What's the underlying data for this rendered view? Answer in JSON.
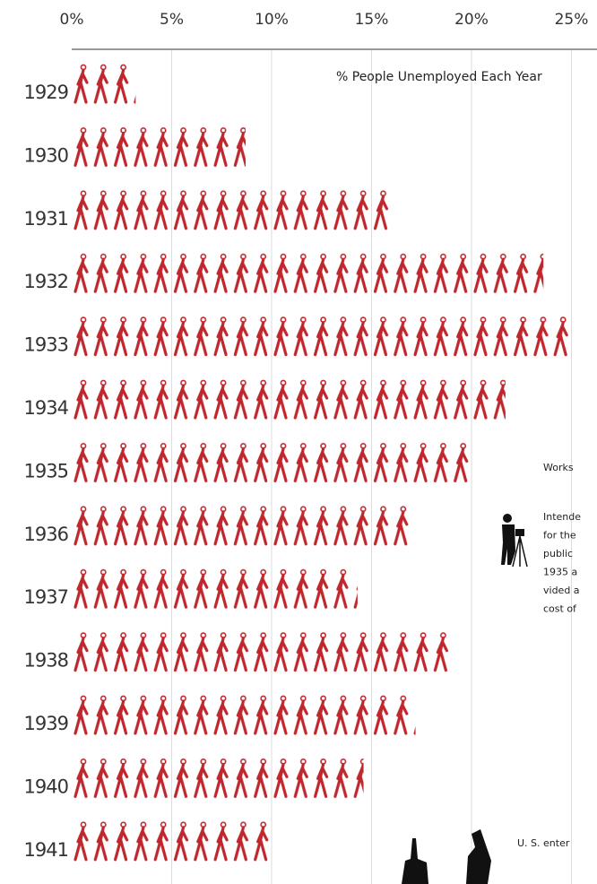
{
  "chart_data": {
    "type": "pictograph",
    "title": "% People Unemployed Each Year",
    "categories": [
      "1929",
      "1930",
      "1931",
      "1932",
      "1933",
      "1934",
      "1935",
      "1936",
      "1937",
      "1938",
      "1939",
      "1940",
      "1941"
    ],
    "values": [
      3.2,
      8.7,
      15.9,
      23.6,
      24.9,
      21.7,
      20.1,
      16.9,
      14.3,
      19.0,
      17.2,
      14.6,
      9.9
    ],
    "color": "#c0272d",
    "xlim": [
      0,
      26.1
    ],
    "xticks": [
      {
        "value": 0,
        "label": "0%"
      },
      {
        "value": 5,
        "label": "5%"
      },
      {
        "value": 10,
        "label": "10%"
      },
      {
        "value": 15,
        "label": "15%"
      },
      {
        "value": 20,
        "label": "20%"
      },
      {
        "value": 25,
        "label": "25%"
      }
    ],
    "grid": true
  },
  "annotations": {
    "works": "Works",
    "works_lines": [
      "Intende",
      "for the",
      "public",
      "1935 a",
      "vided a",
      "cost of"
    ],
    "war": "U. S. enter"
  }
}
